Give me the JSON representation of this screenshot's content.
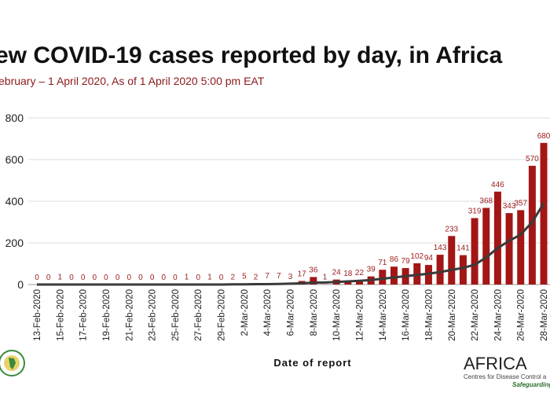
{
  "chart_data": {
    "type": "bar",
    "title": "ew COVID-19 cases reported by day, in Africa",
    "subtitle": "ebruary – 1 April 2020,  As of 1 April 2020 5:00 pm EAT",
    "x_label": "Date of report",
    "categories": [
      "13-Feb-2020",
      null,
      "15-Feb-2020",
      null,
      "17-Feb-2020",
      null,
      "19-Feb-2020",
      null,
      "21-Feb-2020",
      null,
      "23-Feb-2020",
      null,
      "25-Feb-2020",
      null,
      "27-Feb-2020",
      null,
      "29-Feb-2020",
      null,
      "2-Mar-2020",
      null,
      "4-Mar-2020",
      null,
      "6-Mar-2020",
      null,
      "8-Mar-2020",
      null,
      "10-Mar-2020",
      null,
      "12-Mar-2020",
      null,
      "14-Mar-2020",
      null,
      "16-Mar-2020",
      null,
      "18-Mar-2020",
      null,
      "20-Mar-2020",
      null,
      "22-Mar-2020",
      null,
      "24-Mar-2020",
      null,
      "26-Mar-2020",
      null,
      "28-Mar-2020"
    ],
    "values": [
      0,
      0,
      1,
      0,
      0,
      0,
      0,
      0,
      0,
      0,
      0,
      0,
      0,
      1,
      0,
      1,
      0,
      2,
      5,
      2,
      7,
      7,
      3,
      17,
      36,
      1,
      24,
      18,
      22,
      39,
      71,
      86,
      79,
      102,
      94,
      143,
      233,
      141,
      319,
      368,
      446,
      343,
      357,
      570,
      680
    ],
    "trend_values": [
      0,
      0,
      0,
      0,
      0,
      0,
      0,
      0,
      0,
      0,
      0,
      0,
      0,
      0,
      0,
      0,
      0,
      1,
      1,
      2,
      2,
      3,
      4,
      6,
      9,
      10,
      12,
      15,
      18,
      22,
      28,
      34,
      40,
      46,
      52,
      60,
      70,
      80,
      95,
      130,
      175,
      210,
      240,
      300,
      390
    ],
    "color": "#a31616",
    "trend_color": "#3a3a3a",
    "label_color": "#9b1c1c",
    "ylim": [
      0,
      800
    ],
    "yticks": [
      0,
      200,
      400,
      600,
      800
    ],
    "grid": true,
    "logo": {
      "name": "AFRICA",
      "line1": "Centres for Disease Control a",
      "line2": "Safeguarding"
    }
  }
}
